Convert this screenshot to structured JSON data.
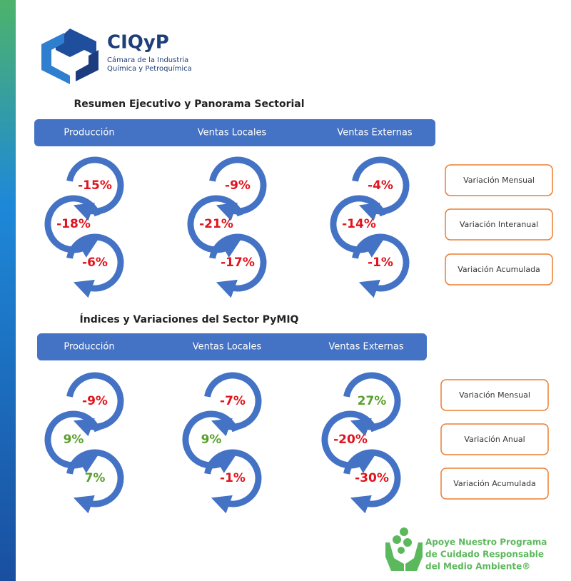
{
  "header": {
    "logo": "CIQyP",
    "org_line1": "Cámara de la Industria",
    "org_line2": "Química y Petroquímica"
  },
  "sections": [
    {
      "title": "Resumen Ejecutivo y Panorama Sectorial",
      "columns": [
        {
          "name": "Producción",
          "values": [
            "-15%",
            "-18%",
            "-6%"
          ]
        },
        {
          "name": "Ventas Locales",
          "values": [
            "-9%",
            "-21%",
            "-17%"
          ]
        },
        {
          "name": "Ventas Externas",
          "values": [
            "-4%",
            "-14%",
            "-1%"
          ]
        }
      ],
      "legend": [
        "Variación Mensual",
        "Variación Interanual",
        "Variación Acumulada"
      ]
    },
    {
      "title": "Índices y Variaciones del Sector PyMIQ",
      "columns": [
        {
          "name": "Producción",
          "values": [
            "-9%",
            "9%",
            "7%"
          ]
        },
        {
          "name": "Ventas Locales",
          "values": [
            "-7%",
            "9%",
            "-1%"
          ]
        },
        {
          "name": "Ventas Externas",
          "values": [
            "27%",
            "-20%",
            "-30%"
          ]
        }
      ],
      "legend": [
        "Variación Mensual",
        "Variación Anual",
        "Variación Acumulada"
      ]
    }
  ],
  "footer": {
    "lines": [
      "Apoye Nuestro Programa",
      "de Cuidado Responsable",
      "del Medio Ambiente®"
    ]
  }
}
